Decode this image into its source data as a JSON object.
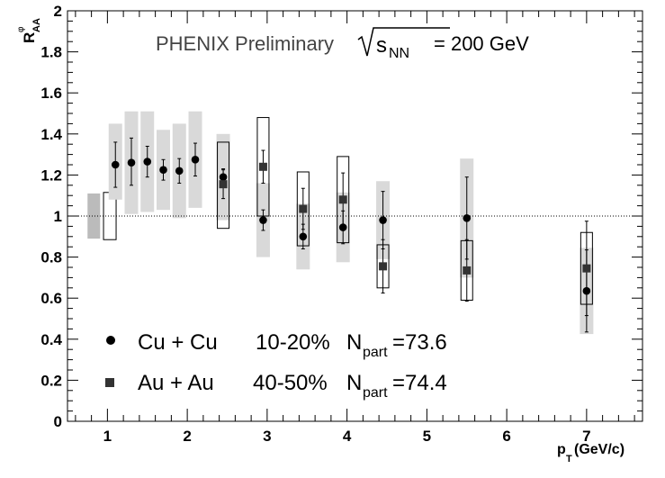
{
  "chart_data": {
    "type": "scatter",
    "title_main": "PHENIX Preliminary",
    "title_sqrt": "s",
    "title_sub": "NN",
    "title_energy": "= 200 GeV",
    "ylabel": {
      "main": "R",
      "sup": "φ",
      "sub": "AA"
    },
    "xlabel": {
      "main": "p",
      "sub": "T",
      "unit": "(GeV/c)"
    },
    "xlim": [
      0.5,
      7.7
    ],
    "ylim": [
      0,
      2
    ],
    "x_ticks": [
      "1",
      "2",
      "3",
      "4",
      "5",
      "6",
      "7"
    ],
    "y_ticks": [
      "0",
      "0.2",
      "0.4",
      "0.6",
      "0.8",
      "1",
      "1.2",
      "1.4",
      "1.6",
      "1.8",
      "2"
    ],
    "reference_line": 1,
    "series": [
      {
        "name": "Cu + Cu",
        "centrality": "10-20%",
        "npart_label": "N",
        "npart_sub": "part",
        "npart_value": "=73.6",
        "marker": "circle",
        "color": "#000000",
        "sys_style": "filled-gray",
        "points": [
          {
            "x": 1.1,
            "y": 1.25,
            "err_lo": 0.11,
            "err_hi": 0.11,
            "sys_lo": 0.17,
            "sys_hi": 0.2
          },
          {
            "x": 1.3,
            "y": 1.26,
            "err_lo": 0.11,
            "err_hi": 0.12,
            "sys_lo": 0.25,
            "sys_hi": 0.25
          },
          {
            "x": 1.5,
            "y": 1.265,
            "err_lo": 0.075,
            "err_hi": 0.075,
            "sys_lo": 0.245,
            "sys_hi": 0.245
          },
          {
            "x": 1.7,
            "y": 1.225,
            "err_lo": 0.05,
            "err_hi": 0.05,
            "sys_lo": 0.195,
            "sys_hi": 0.195
          },
          {
            "x": 1.9,
            "y": 1.22,
            "err_lo": 0.06,
            "err_hi": 0.06,
            "sys_lo": 0.23,
            "sys_hi": 0.23
          },
          {
            "x": 2.1,
            "y": 1.275,
            "err_lo": 0.08,
            "err_hi": 0.08,
            "sys_lo": 0.235,
            "sys_hi": 0.235
          },
          {
            "x": 2.45,
            "y": 1.19,
            "err_lo": 0.04,
            "err_hi": 0.04,
            "sys_lo": 0.21,
            "sys_hi": 0.21
          },
          {
            "x": 2.95,
            "y": 0.98,
            "err_lo": 0.05,
            "err_hi": 0.05,
            "sys_lo": 0.18,
            "sys_hi": 0.18
          },
          {
            "x": 3.45,
            "y": 0.9,
            "err_lo": 0.06,
            "err_hi": 0.06,
            "sys_lo": 0.16,
            "sys_hi": 0.16
          },
          {
            "x": 3.95,
            "y": 0.945,
            "err_lo": 0.08,
            "err_hi": 0.08,
            "sys_lo": 0.17,
            "sys_hi": 0.17
          },
          {
            "x": 4.45,
            "y": 0.98,
            "err_lo": 0.14,
            "err_hi": 0.14,
            "sys_lo": 0.19,
            "sys_hi": 0.19
          },
          {
            "x": 5.5,
            "y": 0.99,
            "err_lo": 0.2,
            "err_hi": 0.2,
            "sys_lo": 0.29,
            "sys_hi": 0.29
          },
          {
            "x": 7.0,
            "y": 0.635,
            "err_lo": 0.2,
            "err_hi": 0.2,
            "sys_lo": 0.21,
            "sys_hi": 0.21
          }
        ]
      },
      {
        "name": "Au + Au",
        "centrality": "40-50%",
        "npart_label": "N",
        "npart_sub": "part",
        "npart_value": "=74.4",
        "marker": "square",
        "color": "#333333",
        "sys_style": "open-box",
        "points": [
          {
            "x": 2.45,
            "y": 1.155,
            "err_lo": 0.07,
            "err_hi": 0.07,
            "sys_lo": 0.215,
            "sys_hi": 0.205
          },
          {
            "x": 2.95,
            "y": 1.24,
            "err_lo": 0.08,
            "err_hi": 0.08,
            "sys_lo": 0.24,
            "sys_hi": 0.24
          },
          {
            "x": 3.45,
            "y": 1.035,
            "err_lo": 0.1,
            "err_hi": 0.1,
            "sys_lo": 0.18,
            "sys_hi": 0.18
          },
          {
            "x": 3.95,
            "y": 1.08,
            "err_lo": 0.13,
            "err_hi": 0.13,
            "sys_lo": 0.21,
            "sys_hi": 0.21
          },
          {
            "x": 4.45,
            "y": 0.755,
            "err_lo": 0.13,
            "err_hi": 0.13,
            "sys_lo": 0.105,
            "sys_hi": 0.105
          },
          {
            "x": 5.5,
            "y": 0.735,
            "err_lo": 0.15,
            "err_hi": 0.15,
            "sys_lo": 0.145,
            "sys_hi": 0.145
          },
          {
            "x": 7.0,
            "y": 0.745,
            "err_lo": 0.23,
            "err_hi": 0.23,
            "sys_lo": 0.175,
            "sys_hi": 0.175
          }
        ]
      }
    ],
    "global_uncertainty": [
      {
        "x": 0.83,
        "lo": 0.89,
        "hi": 1.11,
        "style": "filled-gray"
      },
      {
        "x": 1.03,
        "lo": 0.885,
        "hi": 1.115,
        "style": "open-box"
      }
    ],
    "grid": false
  }
}
